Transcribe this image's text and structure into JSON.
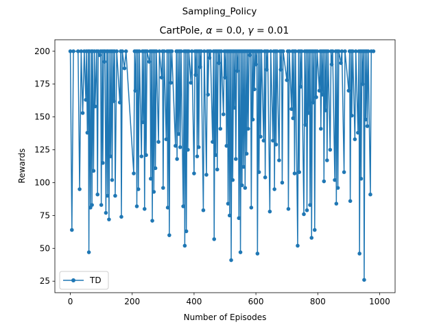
{
  "chart_data": {
    "type": "line",
    "suptitle": "Sampling_Policy",
    "title": {
      "main": "CartPole, ",
      "alpha_symbol": "α",
      "alpha_text": " = 0.0, ",
      "gamma_symbol": "γ",
      "gamma_text": " = 0.01"
    },
    "xlabel": "Number of Episodes",
    "ylabel": "Rewards",
    "xlim": [
      -50,
      1050
    ],
    "ylim": [
      16.25,
      208.75
    ],
    "xticks": [
      0,
      200,
      400,
      600,
      800,
      1000
    ],
    "yticks": [
      25,
      50,
      75,
      100,
      125,
      150,
      175,
      200
    ],
    "grid": false,
    "legend": {
      "position": "lower left",
      "entries": [
        "TD"
      ]
    },
    "series": [
      {
        "name": "TD",
        "color": "#1f77b4",
        "marker": "circle",
        "points": [
          [
            0,
            200
          ],
          [
            5,
            64
          ],
          [
            10,
            200
          ],
          [
            25,
            200
          ],
          [
            30,
            95
          ],
          [
            35,
            200
          ],
          [
            40,
            153
          ],
          [
            45,
            200
          ],
          [
            50,
            163
          ],
          [
            52,
            200
          ],
          [
            55,
            138
          ],
          [
            58,
            200
          ],
          [
            60,
            47
          ],
          [
            62,
            200
          ],
          [
            65,
            81
          ],
          [
            68,
            200
          ],
          [
            70,
            83
          ],
          [
            72,
            200
          ],
          [
            75,
            109
          ],
          [
            78,
            200
          ],
          [
            80,
            158
          ],
          [
            85,
            200
          ],
          [
            88,
            91
          ],
          [
            90,
            200
          ],
          [
            95,
            197
          ],
          [
            98,
            200
          ],
          [
            100,
            83
          ],
          [
            103,
            200
          ],
          [
            105,
            115
          ],
          [
            108,
            200
          ],
          [
            110,
            192
          ],
          [
            112,
            200
          ],
          [
            115,
            77
          ],
          [
            118,
            200
          ],
          [
            120,
            90
          ],
          [
            122,
            200
          ],
          [
            125,
            72
          ],
          [
            128,
            200
          ],
          [
            130,
            120
          ],
          [
            133,
            200
          ],
          [
            135,
            102
          ],
          [
            138,
            200
          ],
          [
            140,
            162
          ],
          [
            143,
            200
          ],
          [
            145,
            90
          ],
          [
            150,
            200
          ],
          [
            160,
            161
          ],
          [
            163,
            200
          ],
          [
            165,
            74
          ],
          [
            168,
            200
          ],
          [
            175,
            187
          ],
          [
            180,
            200
          ],
          [
            205,
            107
          ],
          [
            208,
            200
          ],
          [
            210,
            170
          ],
          [
            213,
            200
          ],
          [
            215,
            82
          ],
          [
            218,
            200
          ],
          [
            220,
            95
          ],
          [
            223,
            200
          ],
          [
            230,
            120
          ],
          [
            233,
            200
          ],
          [
            235,
            146
          ],
          [
            238,
            200
          ],
          [
            240,
            80
          ],
          [
            243,
            200
          ],
          [
            245,
            121
          ],
          [
            248,
            200
          ],
          [
            255,
            192
          ],
          [
            258,
            200
          ],
          [
            260,
            103
          ],
          [
            263,
            200
          ],
          [
            265,
            71
          ],
          [
            268,
            200
          ],
          [
            270,
            93
          ],
          [
            273,
            200
          ],
          [
            275,
            111
          ],
          [
            278,
            200
          ],
          [
            285,
            131
          ],
          [
            288,
            200
          ],
          [
            295,
            180
          ],
          [
            298,
            200
          ],
          [
            300,
            96
          ],
          [
            303,
            200
          ],
          [
            310,
            133
          ],
          [
            313,
            200
          ],
          [
            315,
            81
          ],
          [
            318,
            200
          ],
          [
            320,
            60
          ],
          [
            323,
            200
          ],
          [
            325,
            176
          ],
          [
            328,
            200
          ],
          [
            340,
            128
          ],
          [
            343,
            200
          ],
          [
            345,
            118
          ],
          [
            348,
            200
          ],
          [
            350,
            137
          ],
          [
            353,
            200
          ],
          [
            355,
            127
          ],
          [
            358,
            200
          ],
          [
            365,
            82
          ],
          [
            368,
            200
          ],
          [
            370,
            52
          ],
          [
            373,
            200
          ],
          [
            375,
            63
          ],
          [
            378,
            200
          ],
          [
            380,
            125
          ],
          [
            383,
            200
          ],
          [
            390,
            176
          ],
          [
            393,
            200
          ],
          [
            400,
            107
          ],
          [
            403,
            200
          ],
          [
            405,
            182
          ],
          [
            408,
            200
          ],
          [
            410,
            120
          ],
          [
            413,
            200
          ],
          [
            415,
            127
          ],
          [
            418,
            200
          ],
          [
            420,
            188
          ],
          [
            423,
            200
          ],
          [
            430,
            79
          ],
          [
            433,
            200
          ],
          [
            440,
            106
          ],
          [
            443,
            200
          ],
          [
            445,
            167
          ],
          [
            448,
            200
          ],
          [
            450,
            195
          ],
          [
            453,
            200
          ],
          [
            460,
            131
          ],
          [
            463,
            200
          ],
          [
            465,
            57
          ],
          [
            468,
            200
          ],
          [
            470,
            121
          ],
          [
            473,
            200
          ],
          [
            475,
            110
          ],
          [
            478,
            200
          ],
          [
            480,
            191
          ],
          [
            483,
            200
          ],
          [
            485,
            141
          ],
          [
            488,
            200
          ],
          [
            495,
            152
          ],
          [
            498,
            200
          ],
          [
            500,
            180
          ],
          [
            503,
            200
          ],
          [
            505,
            128
          ],
          [
            508,
            200
          ],
          [
            510,
            84
          ],
          [
            513,
            200
          ],
          [
            515,
            75
          ],
          [
            518,
            200
          ],
          [
            520,
            41
          ],
          [
            523,
            200
          ],
          [
            525,
            102
          ],
          [
            528,
            200
          ],
          [
            530,
            157
          ],
          [
            533,
            200
          ],
          [
            535,
            118
          ],
          [
            538,
            200
          ],
          [
            540,
            185
          ],
          [
            543,
            200
          ],
          [
            545,
            73
          ],
          [
            548,
            200
          ],
          [
            550,
            47
          ],
          [
            553,
            200
          ],
          [
            555,
            98
          ],
          [
            558,
            200
          ],
          [
            560,
            112
          ],
          [
            563,
            200
          ],
          [
            565,
            96
          ],
          [
            568,
            200
          ],
          [
            570,
            122
          ],
          [
            573,
            200
          ],
          [
            575,
            141
          ],
          [
            578,
            200
          ],
          [
            580,
            197
          ],
          [
            583,
            200
          ],
          [
            585,
            81
          ],
          [
            588,
            200
          ],
          [
            590,
            148
          ],
          [
            593,
            200
          ],
          [
            595,
            171
          ],
          [
            598,
            200
          ],
          [
            600,
            190
          ],
          [
            603,
            200
          ],
          [
            605,
            46
          ],
          [
            608,
            200
          ],
          [
            610,
            108
          ],
          [
            613,
            200
          ],
          [
            615,
            135
          ],
          [
            618,
            200
          ],
          [
            625,
            132
          ],
          [
            628,
            200
          ],
          [
            630,
            104
          ],
          [
            633,
            200
          ],
          [
            635,
            186
          ],
          [
            638,
            200
          ],
          [
            645,
            78
          ],
          [
            648,
            200
          ],
          [
            655,
            132
          ],
          [
            658,
            200
          ],
          [
            660,
            95
          ],
          [
            663,
            200
          ],
          [
            665,
            129
          ],
          [
            668,
            200
          ],
          [
            675,
            117
          ],
          [
            678,
            200
          ],
          [
            680,
            186
          ],
          [
            683,
            200
          ],
          [
            685,
            100
          ],
          [
            688,
            200
          ],
          [
            700,
            178
          ],
          [
            703,
            200
          ],
          [
            705,
            80
          ],
          [
            708,
            200
          ],
          [
            715,
            156
          ],
          [
            718,
            200
          ],
          [
            720,
            149
          ],
          [
            723,
            200
          ],
          [
            725,
            107
          ],
          [
            728,
            200
          ],
          [
            735,
            52
          ],
          [
            738,
            200
          ],
          [
            740,
            108
          ],
          [
            743,
            200
          ],
          [
            745,
            173
          ],
          [
            748,
            200
          ],
          [
            755,
            76
          ],
          [
            758,
            200
          ],
          [
            760,
            144
          ],
          [
            763,
            200
          ],
          [
            765,
            79
          ],
          [
            768,
            200
          ],
          [
            770,
            153
          ],
          [
            773,
            200
          ],
          [
            775,
            83
          ],
          [
            778,
            200
          ],
          [
            780,
            58
          ],
          [
            783,
            200
          ],
          [
            785,
            161
          ],
          [
            788,
            200
          ],
          [
            790,
            64
          ],
          [
            793,
            200
          ],
          [
            795,
            165
          ],
          [
            798,
            200
          ],
          [
            805,
            170
          ],
          [
            808,
            200
          ],
          [
            810,
            141
          ],
          [
            813,
            200
          ],
          [
            815,
            167
          ],
          [
            818,
            200
          ],
          [
            820,
            101
          ],
          [
            823,
            200
          ],
          [
            825,
            155
          ],
          [
            828,
            200
          ],
          [
            830,
            117
          ],
          [
            833,
            200
          ],
          [
            840,
            125
          ],
          [
            843,
            200
          ],
          [
            845,
            190
          ],
          [
            848,
            200
          ],
          [
            855,
            102
          ],
          [
            858,
            200
          ],
          [
            860,
            84
          ],
          [
            863,
            200
          ],
          [
            865,
            96
          ],
          [
            868,
            200
          ],
          [
            875,
            191
          ],
          [
            878,
            200
          ],
          [
            885,
            108
          ],
          [
            888,
            200
          ],
          [
            900,
            170
          ],
          [
            903,
            200
          ],
          [
            905,
            86
          ],
          [
            908,
            200
          ],
          [
            910,
            151
          ],
          [
            913,
            200
          ],
          [
            920,
            133
          ],
          [
            923,
            200
          ],
          [
            930,
            138
          ],
          [
            933,
            200
          ],
          [
            935,
            46
          ],
          [
            938,
            200
          ],
          [
            940,
            103
          ],
          [
            943,
            200
          ],
          [
            945,
            175
          ],
          [
            948,
            200
          ],
          [
            950,
            26
          ],
          [
            953,
            200
          ],
          [
            955,
            148
          ],
          [
            958,
            200
          ],
          [
            960,
            143
          ],
          [
            963,
            200
          ],
          [
            970,
            91
          ],
          [
            973,
            200
          ],
          [
            980,
            200
          ]
        ]
      }
    ]
  }
}
